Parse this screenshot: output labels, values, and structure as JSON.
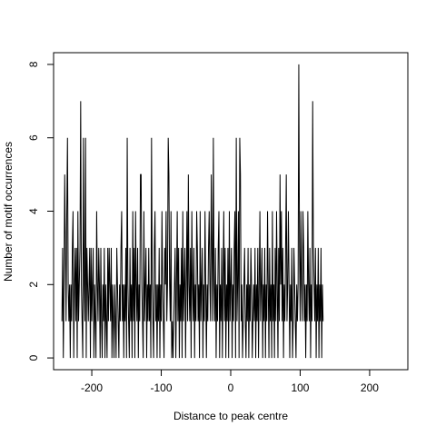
{
  "chart_data": {
    "type": "line",
    "title": "",
    "xlabel": "Distance to peak centre",
    "ylabel": "Number of motif occurrences",
    "xlim": [
      -255,
      255
    ],
    "ylim": [
      -0.32,
      8.32
    ],
    "x_ticks": [
      -200,
      -100,
      0,
      100,
      200
    ],
    "x_tick_labels": [
      "-200",
      "-100",
      "0",
      "100",
      "200"
    ],
    "y_ticks": [
      0,
      2,
      4,
      6,
      8
    ],
    "y_tick_labels": [
      "0",
      "2",
      "4",
      "6",
      "8"
    ],
    "grid": false,
    "series": [
      {
        "color": "#000000",
        "x_start": -243,
        "x_step": 1,
        "values": [
          1,
          3,
          0,
          2,
          5,
          3,
          1,
          4,
          6,
          2,
          1,
          2,
          0,
          2,
          1,
          3,
          4,
          0,
          2,
          3,
          1,
          3,
          0,
          4,
          1,
          2,
          3,
          7,
          2,
          1,
          0,
          6,
          2,
          1,
          6,
          0,
          3,
          2,
          1,
          2,
          3,
          0,
          3,
          1,
          2,
          3,
          0,
          2,
          1,
          0,
          4,
          2,
          1,
          3,
          2,
          0,
          3,
          1,
          0,
          2,
          1,
          3,
          0,
          2,
          1,
          0,
          3,
          1,
          3,
          2,
          1,
          3,
          0,
          2,
          1,
          0,
          2,
          1,
          0,
          3,
          2,
          1,
          0,
          2,
          1,
          3,
          4,
          1,
          2,
          0,
          2,
          1,
          3,
          0,
          6,
          2,
          1,
          0,
          3,
          1,
          2,
          0,
          4,
          1,
          3,
          0,
          4,
          2,
          1,
          3,
          0,
          2,
          1,
          5,
          5,
          2,
          1,
          0,
          4,
          1,
          2,
          3,
          0,
          2,
          1,
          3,
          1,
          2,
          0,
          6,
          2,
          1,
          0,
          3,
          4,
          1,
          2,
          0,
          2,
          1,
          3,
          0,
          2,
          1,
          4,
          2,
          1,
          0,
          3,
          2,
          4,
          1,
          2,
          6,
          5,
          2,
          1,
          4,
          0,
          1,
          0,
          1,
          2,
          3,
          0,
          2,
          4,
          1,
          3,
          0,
          2,
          1,
          3,
          0,
          4,
          1,
          2,
          3,
          0,
          2,
          4,
          1,
          5,
          2,
          1,
          3,
          0,
          4,
          2,
          1,
          3,
          0,
          2,
          1,
          4,
          3,
          1,
          2,
          0,
          4,
          1,
          2,
          3,
          0,
          2,
          1,
          4,
          2,
          0,
          2,
          1,
          3,
          4,
          2,
          1,
          5,
          3,
          1,
          6,
          2,
          1,
          3,
          0,
          2,
          1,
          3,
          4,
          0,
          2,
          1,
          3,
          0,
          2,
          4,
          1,
          3,
          0,
          2,
          1,
          3,
          0,
          4,
          1,
          2,
          3,
          0,
          2,
          1,
          3,
          4,
          0,
          6,
          1,
          2,
          4,
          0,
          6,
          5,
          1,
          2,
          0,
          1,
          2,
          3,
          1,
          0,
          2,
          1,
          3,
          0,
          2,
          1,
          3,
          2,
          0,
          1,
          2,
          1,
          3,
          0,
          2,
          1,
          3,
          0,
          2,
          4,
          1,
          2,
          3,
          0,
          2,
          1,
          3,
          0,
          2,
          1,
          4,
          2,
          0,
          3,
          1,
          2,
          0,
          4,
          1,
          2,
          0,
          3,
          1,
          4,
          2,
          0,
          3,
          1,
          5,
          2,
          4,
          1,
          3,
          0,
          2,
          1,
          3,
          5,
          1,
          2,
          4,
          2,
          0,
          2,
          1,
          3,
          0,
          1,
          3,
          2,
          1,
          0,
          2,
          1,
          2,
          8,
          3,
          1,
          4,
          2,
          1,
          4,
          3,
          1,
          2,
          0,
          2,
          1,
          4,
          2,
          1,
          3,
          0,
          2,
          1,
          7,
          3,
          2,
          1,
          3,
          0,
          2,
          1,
          3,
          0,
          2,
          1,
          3,
          0,
          2,
          1
        ]
      }
    ]
  }
}
